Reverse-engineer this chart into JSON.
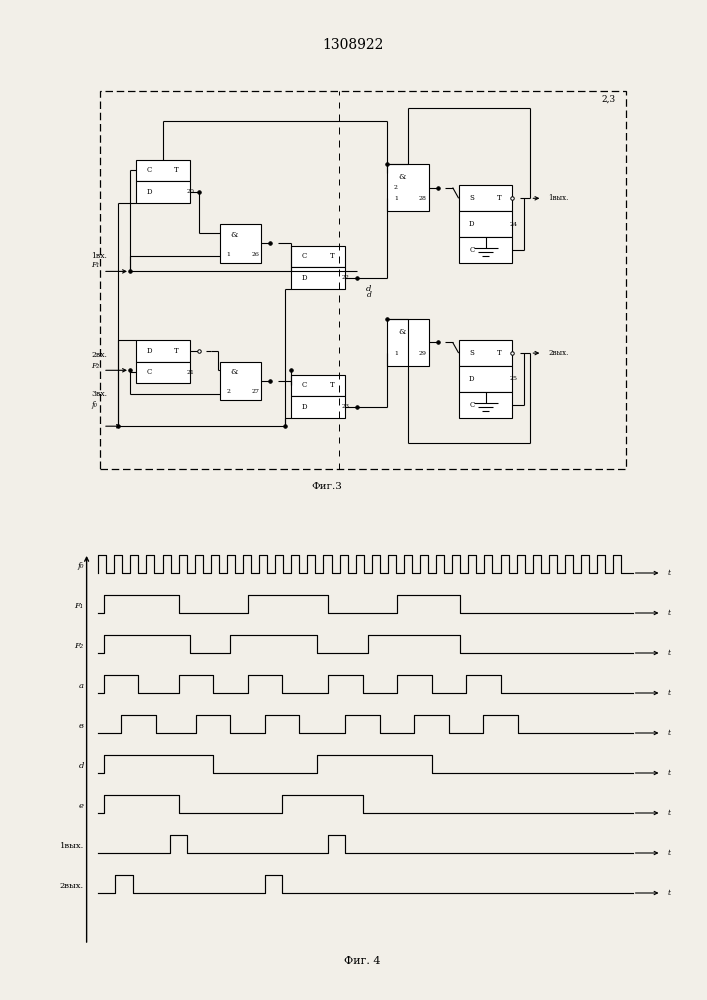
{
  "title": "1308922",
  "fig3_label": "Фиг.3",
  "fig4_label": "Фиг. 4",
  "bg": "#f2efe8"
}
